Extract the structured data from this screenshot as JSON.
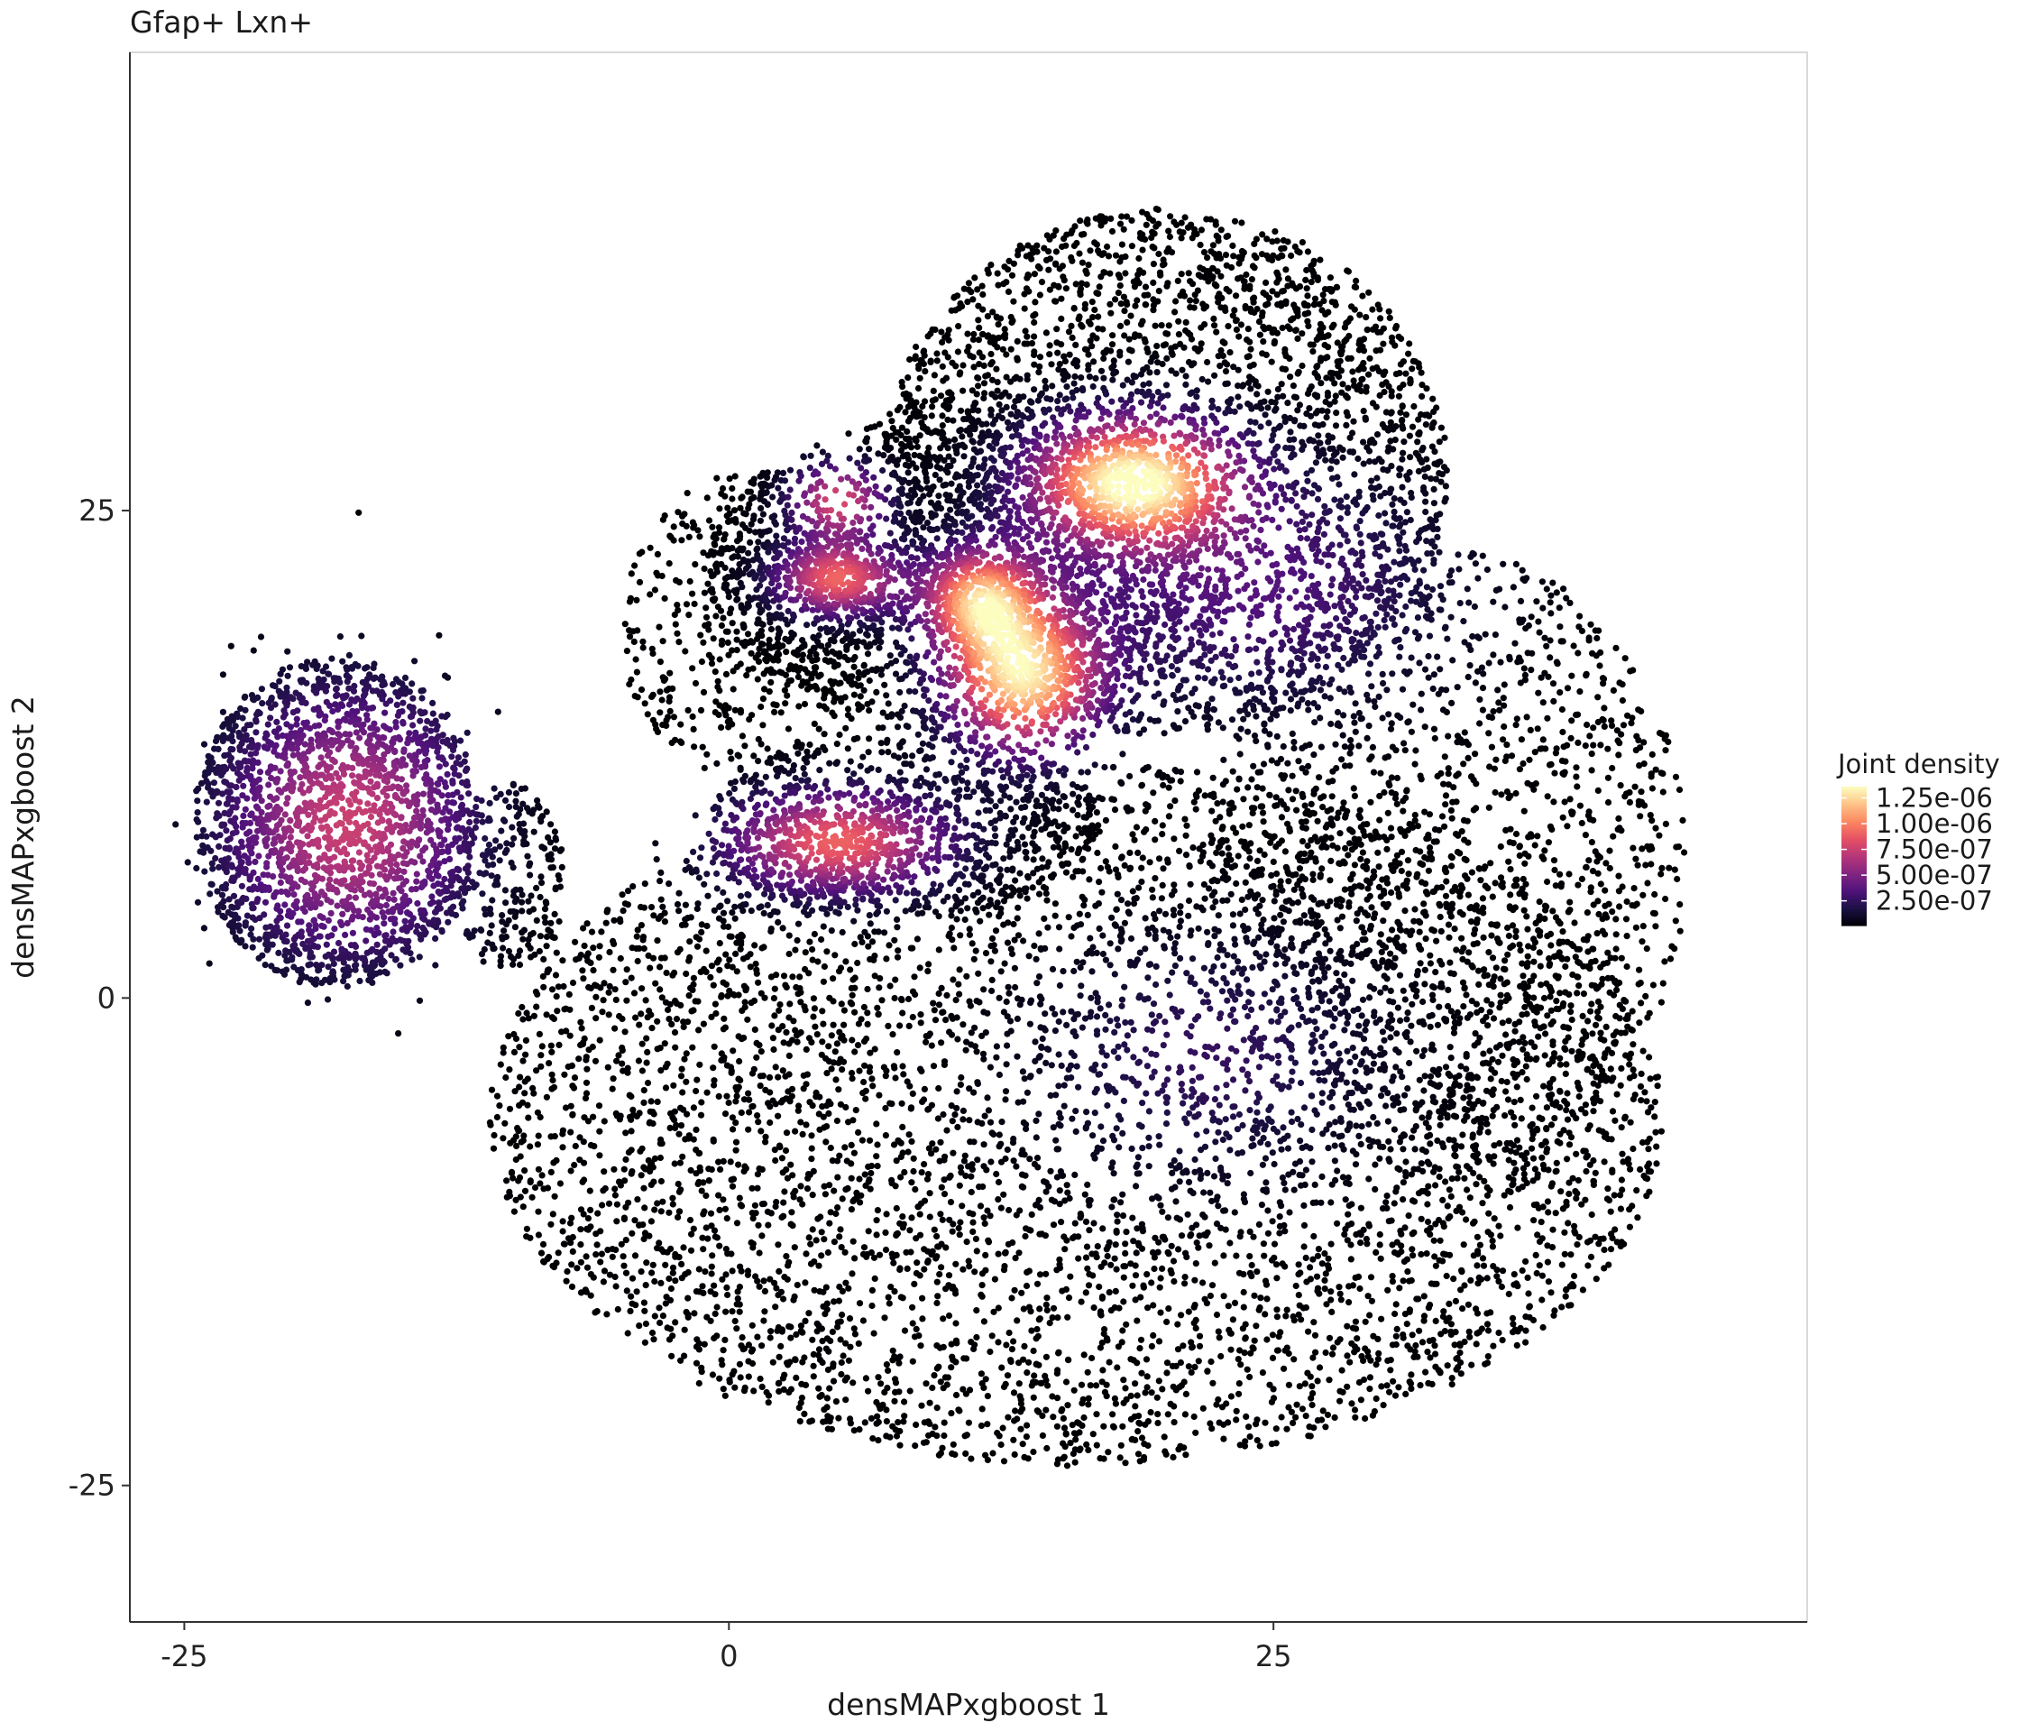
{
  "chart_data": {
    "type": "scatter",
    "title": "Gfap+ Lxn+",
    "xlabel": "densMAPxgboost 1",
    "ylabel": "densMAPxgboost 2",
    "xlim": [
      -27.5,
      49.5
    ],
    "ylim": [
      -32,
      48.5
    ],
    "x_ticks": [
      {
        "value": -25,
        "label": "-25"
      },
      {
        "value": 0,
        "label": "0"
      },
      {
        "value": 25,
        "label": "25"
      }
    ],
    "y_ticks": [
      {
        "value": -25,
        "label": "-25"
      },
      {
        "value": 0,
        "label": "0"
      },
      {
        "value": 25,
        "label": "25"
      }
    ],
    "grid": false,
    "point_color_encoding": "Joint density",
    "legend": {
      "title": "Joint density",
      "placement": "right",
      "entries": [
        {
          "value": 1.25e-06,
          "label": "1.25e-06"
        },
        {
          "value": 1e-06,
          "label": "1.00e-06"
        },
        {
          "value": 7.5e-07,
          "label": "7.50e-07"
        },
        {
          "value": 5e-07,
          "label": "5.00e-07"
        },
        {
          "value": 2.5e-07,
          "label": "2.50e-07"
        }
      ],
      "range": [
        1e-08,
        1.36e-06
      ],
      "colormap": "magma",
      "colors": [
        "#000004",
        "#1c1044",
        "#4f127b",
        "#812581",
        "#b5367a",
        "#e55064",
        "#fb8761",
        "#fec287",
        "#fcfdbf"
      ]
    },
    "clusters": [
      {
        "center": [
          18.5,
          26.5
        ],
        "spread": [
          3.2,
          2.2
        ],
        "peak_density": 1.35e-06
      },
      {
        "center": [
          13.5,
          16.5
        ],
        "spread": [
          2.4,
          2.6
        ],
        "peak_density": 1.25e-06
      },
      {
        "center": [
          11.5,
          20.5
        ],
        "spread": [
          1.8,
          1.8
        ],
        "peak_density": 1e-06
      },
      {
        "center": [
          5.0,
          8.0
        ],
        "spread": [
          3.5,
          1.8
        ],
        "peak_density": 9e-07
      },
      {
        "center": [
          -17.5,
          9.0
        ],
        "spread": [
          3.8,
          4.5
        ],
        "peak_density": 7.5e-07
      },
      {
        "center": [
          5.0,
          21.5
        ],
        "spread": [
          2.0,
          1.3
        ],
        "peak_density": 9e-07
      },
      {
        "center": [
          5.0,
          25.5
        ],
        "spread": [
          1.5,
          1.3
        ],
        "peak_density": 8e-07
      },
      {
        "center": [
          24.0,
          21.0
        ],
        "spread": [
          6.0,
          4.0
        ],
        "peak_density": 3.5e-07
      },
      {
        "center": [
          22.0,
          -3.0
        ],
        "spread": [
          5.0,
          4.0
        ],
        "peak_density": 2.5e-07
      }
    ]
  }
}
